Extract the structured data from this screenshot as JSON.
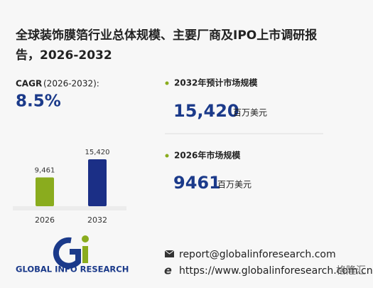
{
  "title_lines": [
    "全球装饰膜箔行业总体规模、主要厂商及IPO上市调研报",
    "告，2026-2032"
  ],
  "cagr": {
    "label": "CAGR",
    "period": "(2026-2032):",
    "value": "8.5%"
  },
  "chart_data": {
    "type": "bar",
    "categories": [
      "2026",
      "2032"
    ],
    "values": [
      9461,
      15420
    ],
    "value_labels": [
      "9,461",
      "15,420"
    ],
    "colors": [
      "#8aac1e",
      "#1b2f86"
    ]
  },
  "stats": [
    {
      "label": "2032年预计市场规模",
      "value": "15,420",
      "unit": "百万美元"
    },
    {
      "label": "2026年市场规模",
      "value": "9461",
      "unit": "百万美元"
    }
  ],
  "brand": "GLOBAL INFO RESEARCH",
  "contact": {
    "email": "report@globalinforesearch.com",
    "website": "https://www.globalinforesearch.com.cn"
  },
  "watermark": "格隆汇"
}
